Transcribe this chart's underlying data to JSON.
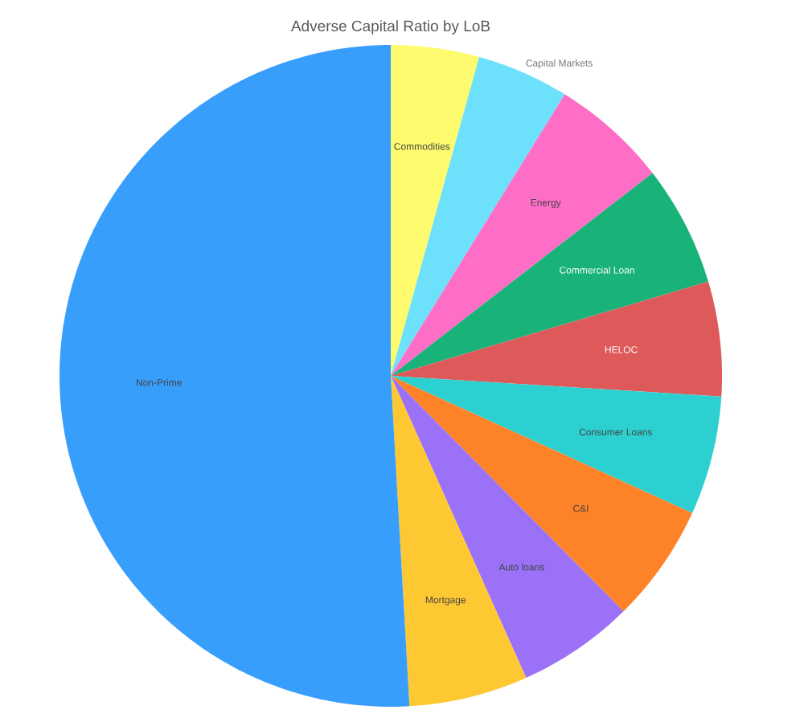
{
  "chart_data": {
    "type": "pie",
    "title": "Adverse Capital Ratio by LoB",
    "categories": [
      "Commodities",
      "Capital Markets",
      "Energy",
      "Commercial Loan",
      "HELOC",
      "Consumer Loans",
      "C&I",
      "Auto loans",
      "Mortgage",
      "Non-Prime"
    ],
    "values": [
      4.3,
      4.5,
      5.7,
      5.9,
      5.6,
      5.8,
      5.8,
      5.7,
      5.8,
      50.9
    ],
    "colors": [
      "#fefc6e",
      "#6de0fb",
      "#fe6ec6",
      "#19b37a",
      "#de5959",
      "#2dd0d0",
      "#fe8227",
      "#9b72f7",
      "#fec833",
      "#379efc"
    ]
  }
}
